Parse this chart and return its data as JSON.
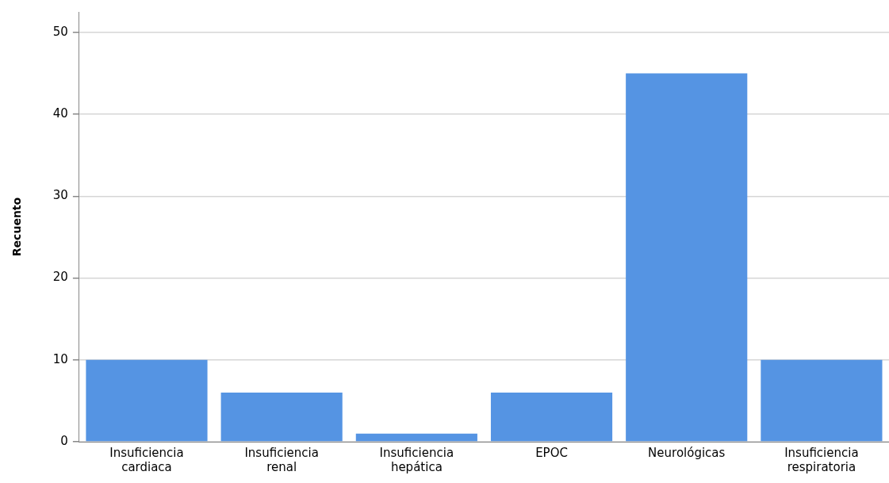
{
  "chart_data": {
    "type": "bar",
    "ylabel": "Recuento",
    "categories": [
      "Insuficiencia cardiaca",
      "Insuficiencia renal",
      "Insuficiencia hepática",
      "EPOC",
      "Neurológicas",
      "Insuficiencia respiratoria"
    ],
    "values": [
      10,
      6,
      1,
      6,
      45,
      10
    ],
    "color": "#5594e3",
    "ylim": [
      0,
      52.5
    ],
    "yticks": [
      0,
      10,
      20,
      30,
      40,
      50
    ],
    "grid": "y",
    "legend": false
  }
}
